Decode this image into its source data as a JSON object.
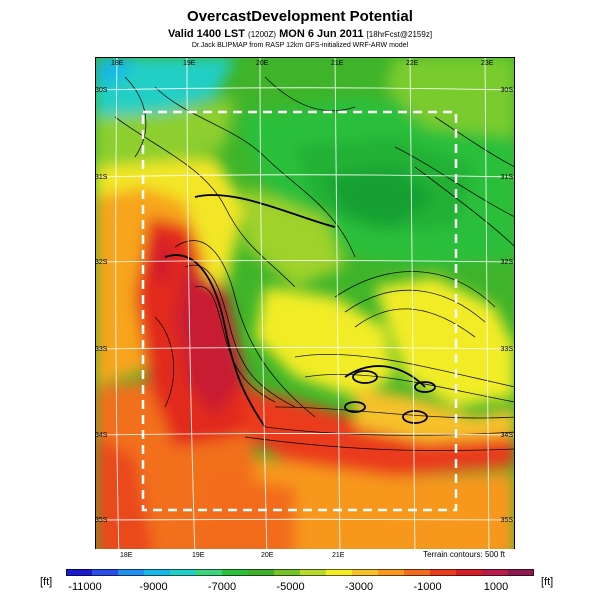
{
  "header": {
    "title": "OvercastDevelopment Potential",
    "subtitle_main": "Valid 1400 LST",
    "subtitle_small": "(1200Z)",
    "subtitle_date": "MON 6 Jun 2011",
    "subtitle_fcst": "[18hrFcst@2159z]",
    "credit": "Dr.Jack BLIPMAP from RASP 12km GFS-initialized WRF-ARW model"
  },
  "map": {
    "lon_labels_top": [
      "18E",
      "19E",
      "20E",
      "21E",
      "22E",
      "23E"
    ],
    "lon_labels_bottom": [
      "18E",
      "19E",
      "20E",
      "21E"
    ],
    "lat_labels_left": [
      "30S",
      "31S",
      "32S",
      "33S",
      "34S",
      "35S"
    ],
    "lat_labels_right": [
      "30S",
      "31S",
      "32S",
      "33S",
      "34S",
      "35S"
    ],
    "terrain_note": "Terrain contours: 500 ft"
  },
  "colorbar": {
    "unit_left": "[ft]",
    "unit_right": "[ft]",
    "ticks": [
      "-11000",
      "-9000",
      "-7000",
      "-5000",
      "-3000",
      "-1000",
      "1000"
    ],
    "colors": [
      "#1a1acb",
      "#2a4ee6",
      "#1f8fee",
      "#17b8e8",
      "#21cfc4",
      "#3ed47e",
      "#2bbf3b",
      "#3fae2a",
      "#74c32b",
      "#b6d92a",
      "#f1ec26",
      "#f7c12b",
      "#f7981f",
      "#f26c1f",
      "#ea3b1f",
      "#d41f29",
      "#b81a49",
      "#8c1a50"
    ]
  }
}
